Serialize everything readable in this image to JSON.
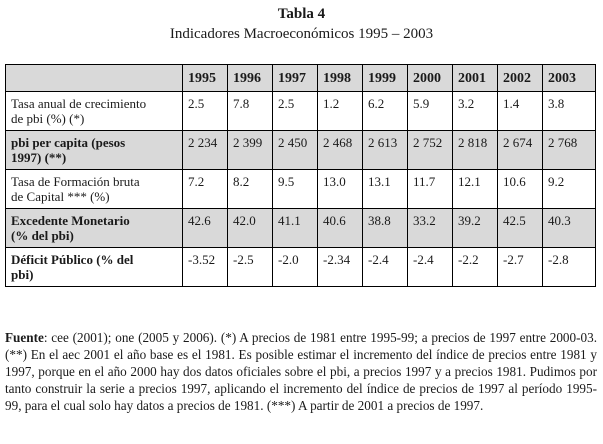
{
  "title": "Tabla 4",
  "subtitle": "Indicadores Macroeconómicos 1995 – 2003",
  "table": {
    "years": [
      "1995",
      "1996",
      "1997",
      "1998",
      "1999",
      "2000",
      "2001",
      "2002",
      "2003"
    ],
    "rows": [
      {
        "label_line1": "Tasa anual de crecimiento",
        "label_line2": "de pbi (%) (*)",
        "values": [
          "2.5",
          "7.8",
          "2.5",
          "1.2",
          "6.2",
          "5.9",
          "3.2",
          "1.4",
          "3.8"
        ]
      },
      {
        "label_line1": "pbi per capita (pesos",
        "label_line2": "1997) (**)",
        "values": [
          "2 234",
          "2 399",
          "2 450",
          "2 468",
          "2 613",
          "2 752",
          "2 818",
          "2 674",
          "2 768"
        ]
      },
      {
        "label_line1": "Tasa de Formación bruta",
        "label_line2": "de Capital *** (%)",
        "values": [
          "7.2",
          "8.2",
          "9.5",
          "13.0",
          "13.1",
          "11.7",
          "12.1",
          "10.6",
          "9.2"
        ]
      },
      {
        "label_line1": "Excedente Monetario",
        "label_line2": "(% del pbi)",
        "values": [
          "42.6",
          "42.0",
          "41.1",
          "40.6",
          "38.8",
          "33.2",
          "39.2",
          "42.5",
          "40.3"
        ]
      },
      {
        "label_line1": "Déficit Público (% del",
        "label_line2": "pbi)",
        "values": [
          "-3.52",
          "-2.5",
          "-2.0",
          "-2.34",
          "-2.4",
          "-2.4",
          "-2.2",
          "-2.7",
          "-2.8"
        ]
      }
    ]
  },
  "note": {
    "label": "Fuente",
    "text": ": cee (2001); one (2005 y 2006). (*) A precios de 1981 entre 1995-99; a precios de 1997 entre 2000-03. (**) En el aec 2001 el año base es el 1981. Es posible estimar el incremento del índice de precios entre 1981 y 1997, porque en el año 2000 hay dos datos oficiales sobre el pbi, a precios 1997 y a precios 1981. Pudimos por tanto construir la serie a precios 1997, aplicando el incremento del índice de precios de 1997 al período 1995-99, para el cual solo hay datos a precios de 1981. (***) A partir de 2001 a precios de 1997."
  }
}
